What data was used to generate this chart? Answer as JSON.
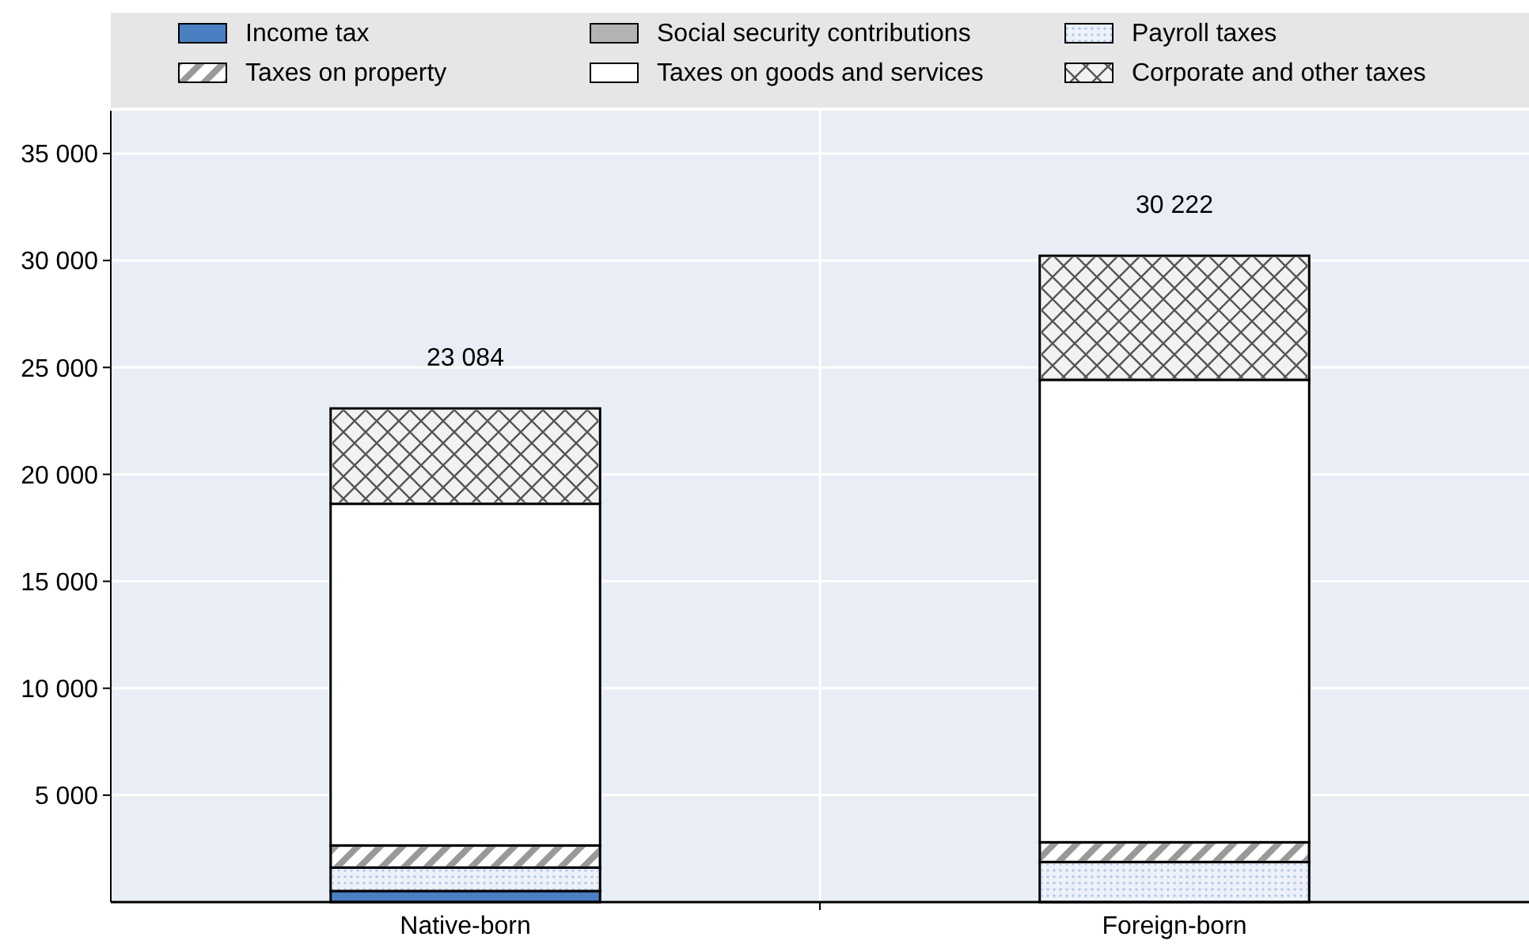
{
  "chart_data": {
    "type": "bar",
    "stacked": true,
    "categories": [
      "Native-born",
      "Foreign-born"
    ],
    "series": [
      {
        "name": "Income tax",
        "color": "#4a7fc1",
        "values": [
          520,
          null
        ]
      },
      {
        "name": "Social security contributions",
        "color": "#b3b3b3",
        "values": [
          0,
          0
        ]
      },
      {
        "name": "Payroll taxes",
        "color": "#edf2fa",
        "values": [
          1090,
          1870
        ]
      },
      {
        "name": "Taxes on property",
        "color": "#999999",
        "values": [
          1040,
          930
        ]
      },
      {
        "name": "Taxes on goods and services",
        "color": "#ffffff",
        "values": [
          15974,
          21622
        ]
      },
      {
        "name": "Corporate and other taxes",
        "color": "#f2f2f2",
        "values": [
          4460,
          5800
        ]
      }
    ],
    "totals": [
      "23 084",
      "30 222"
    ],
    "ylim": [
      0,
      37000
    ],
    "yticks": [
      {
        "value": 5000,
        "label": "5 000"
      },
      {
        "value": 10000,
        "label": "10 000"
      },
      {
        "value": 15000,
        "label": "15 000"
      },
      {
        "value": 20000,
        "label": "20 000"
      },
      {
        "value": 25000,
        "label": "25 000"
      },
      {
        "value": 30000,
        "label": "30 000"
      },
      {
        "value": 35000,
        "label": "35 000"
      }
    ],
    "grid": "y",
    "legend": "top"
  }
}
